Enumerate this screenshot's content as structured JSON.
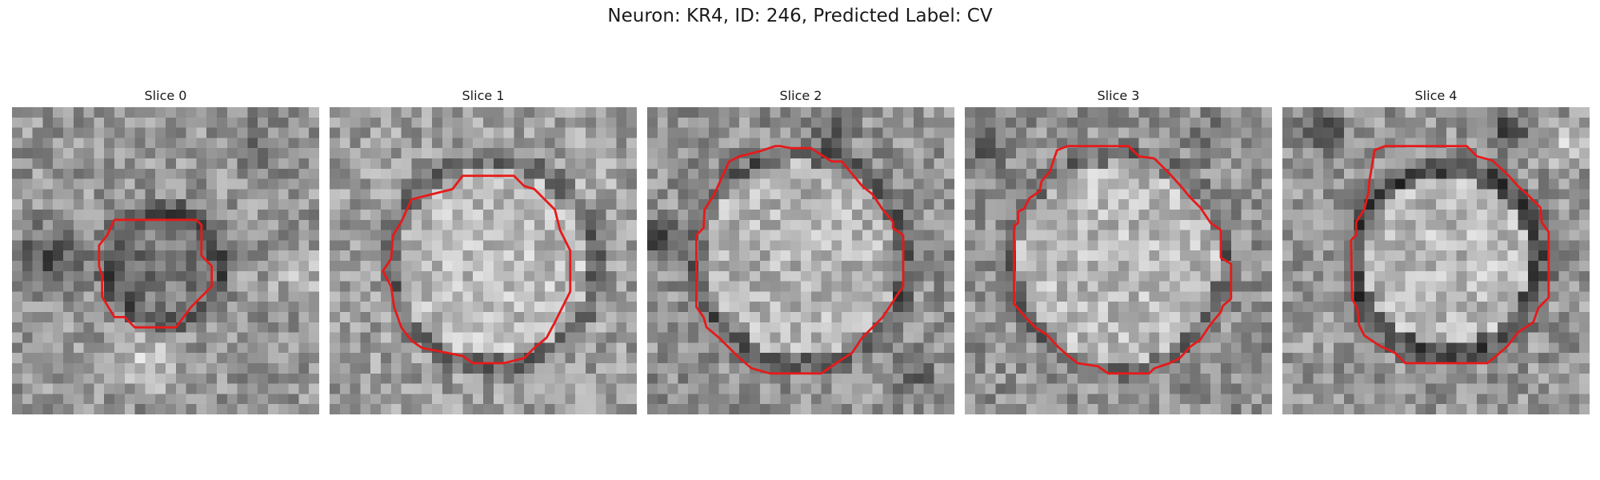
{
  "figure": {
    "title": "Neuron: KR4, ID: 246, Predicted Label: CV"
  },
  "panels": [
    {
      "title": "Slice 0"
    },
    {
      "title": "Slice 1"
    },
    {
      "title": "Slice 2"
    },
    {
      "title": "Slice 3"
    },
    {
      "title": "Slice 4"
    }
  ],
  "style": {
    "contour_color": "#e61a1a",
    "grid_cells": 30
  }
}
